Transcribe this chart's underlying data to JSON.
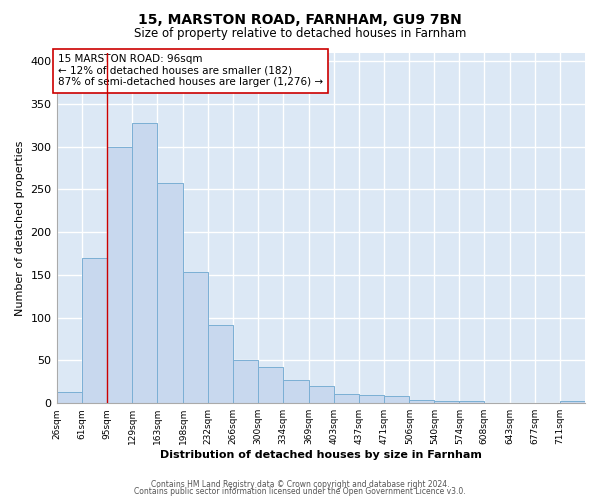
{
  "title1": "15, MARSTON ROAD, FARNHAM, GU9 7BN",
  "title2": "Size of property relative to detached houses in Farnham",
  "xlabel": "Distribution of detached houses by size in Farnham",
  "ylabel": "Number of detached properties",
  "bar_labels": [
    "26sqm",
    "61sqm",
    "95sqm",
    "129sqm",
    "163sqm",
    "198sqm",
    "232sqm",
    "266sqm",
    "300sqm",
    "334sqm",
    "369sqm",
    "403sqm",
    "437sqm",
    "471sqm",
    "506sqm",
    "540sqm",
    "574sqm",
    "608sqm",
    "643sqm",
    "677sqm",
    "711sqm"
  ],
  "bar_heights": [
    13,
    170,
    300,
    328,
    258,
    153,
    91,
    50,
    42,
    27,
    20,
    11,
    10,
    8,
    4,
    3,
    2,
    0,
    0,
    0,
    2
  ],
  "bin_edges": [
    26,
    61,
    95,
    129,
    163,
    198,
    232,
    266,
    300,
    334,
    369,
    403,
    437,
    471,
    506,
    540,
    574,
    608,
    643,
    677,
    711,
    745
  ],
  "bar_color": "#c8d8ee",
  "bar_edgecolor": "#7bafd4",
  "property_line_x": 95,
  "property_line_color": "#cc0000",
  "annotation_line1": "15 MARSTON ROAD: 96sqm",
  "annotation_line2": "← 12% of detached houses are smaller (182)",
  "annotation_line3": "87% of semi-detached houses are larger (1,276) →",
  "ylim": [
    0,
    410
  ],
  "yticks": [
    0,
    50,
    100,
    150,
    200,
    250,
    300,
    350,
    400
  ],
  "plot_bg_color": "#dce8f5",
  "fig_bg_color": "#ffffff",
  "grid_color": "#ffffff",
  "footer1": "Contains HM Land Registry data © Crown copyright and database right 2024.",
  "footer2": "Contains public sector information licensed under the Open Government Licence v3.0."
}
